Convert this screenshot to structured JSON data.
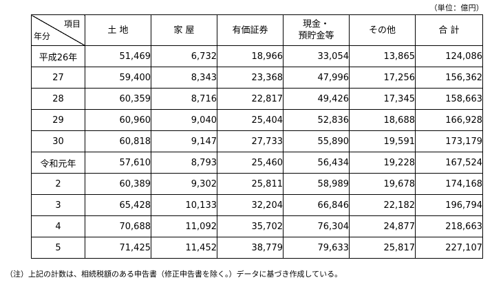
{
  "unit_note": "（単位：億円）",
  "header": {
    "corner_item": "項目",
    "corner_year": "年分",
    "columns": [
      "土 地",
      "家 屋",
      "有価証券",
      "現金・",
      "預貯金等",
      "その他",
      "合 計"
    ]
  },
  "rows": [
    {
      "year": "平成26年",
      "values": [
        "51,469",
        "6,732",
        "18,966",
        "33,054",
        "13,865",
        "124,086"
      ]
    },
    {
      "year": "27",
      "values": [
        "59,400",
        "8,343",
        "23,368",
        "47,996",
        "17,256",
        "156,362"
      ]
    },
    {
      "year": "28",
      "values": [
        "60,359",
        "8,716",
        "22,817",
        "49,426",
        "17,345",
        "158,663"
      ]
    },
    {
      "year": "29",
      "values": [
        "60,960",
        "9,040",
        "25,404",
        "52,836",
        "18,688",
        "166,928"
      ]
    },
    {
      "year": "30",
      "values": [
        "60,818",
        "9,147",
        "27,733",
        "55,890",
        "19,591",
        "173,179"
      ]
    },
    {
      "year": "令和元年",
      "values": [
        "57,610",
        "8,793",
        "25,460",
        "56,434",
        "19,228",
        "167,524"
      ]
    },
    {
      "year": "2",
      "values": [
        "60,389",
        "9,302",
        "25,811",
        "58,989",
        "19,678",
        "174,168"
      ]
    },
    {
      "year": "3",
      "values": [
        "65,428",
        "10,133",
        "32,204",
        "66,846",
        "22,182",
        "196,794"
      ]
    },
    {
      "year": "4",
      "values": [
        "70,688",
        "11,092",
        "35,702",
        "76,304",
        "24,877",
        "218,663"
      ]
    },
    {
      "year": "5",
      "values": [
        "71,425",
        "11,452",
        "38,779",
        "79,633",
        "25,817",
        "227,107"
      ]
    }
  ],
  "footnote": "（注）上記の計数は、相続税額のある申告書（修正申告書を除く。）データに基づき作成している。"
}
